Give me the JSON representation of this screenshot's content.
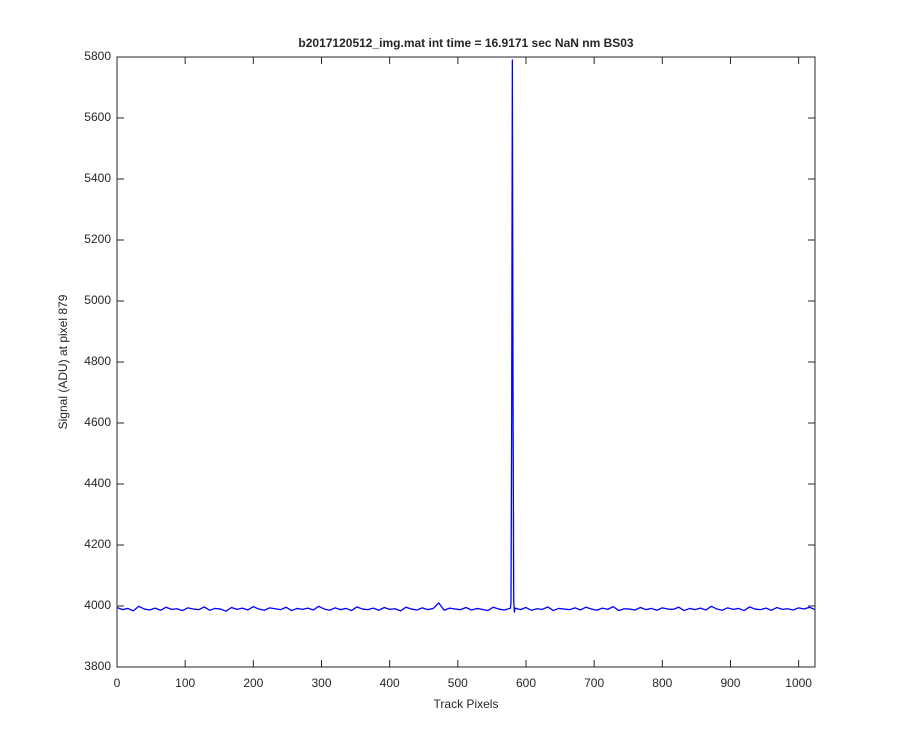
{
  "chart_data": {
    "type": "line",
    "title": "b2017120512_img.mat int time = 16.9171 sec  NaN nm BS03",
    "xlabel": "Track Pixels",
    "ylabel": "Signal (ADU) at pixel 879",
    "color": "#0000ff",
    "x": [
      0,
      8,
      16,
      24,
      32,
      40,
      48,
      56,
      64,
      72,
      80,
      88,
      96,
      104,
      112,
      120,
      128,
      136,
      144,
      152,
      160,
      168,
      176,
      184,
      192,
      200,
      208,
      216,
      224,
      232,
      240,
      248,
      256,
      264,
      272,
      280,
      288,
      296,
      304,
      312,
      320,
      328,
      336,
      344,
      352,
      360,
      368,
      376,
      384,
      392,
      400,
      408,
      416,
      424,
      432,
      440,
      448,
      456,
      464,
      472,
      480,
      488,
      496,
      504,
      512,
      520,
      528,
      536,
      544,
      552,
      560,
      568,
      576,
      577,
      578,
      579,
      580,
      581,
      582,
      583,
      584,
      592,
      600,
      608,
      616,
      624,
      632,
      640,
      648,
      656,
      664,
      672,
      680,
      688,
      696,
      704,
      712,
      720,
      728,
      736,
      744,
      752,
      760,
      768,
      776,
      784,
      792,
      800,
      808,
      816,
      824,
      832,
      840,
      848,
      856,
      864,
      872,
      880,
      888,
      896,
      904,
      912,
      920,
      928,
      936,
      944,
      952,
      960,
      968,
      976,
      984,
      992,
      1000,
      1008,
      1016,
      1024
    ],
    "values": [
      3995,
      3988,
      3992,
      3984,
      3999,
      3990,
      3987,
      3993,
      3986,
      3996,
      3989,
      3991,
      3985,
      3994,
      3990,
      3988,
      3997,
      3986,
      3992,
      3990,
      3983,
      3995,
      3989,
      3993,
      3987,
      3998,
      3990,
      3986,
      3994,
      3991,
      3988,
      3996,
      3985,
      3992,
      3989,
      3993,
      3987,
      3999,
      3990,
      3986,
      3994,
      3988,
      3992,
      3985,
      3997,
      3990,
      3988,
      3993,
      3986,
      3995,
      3989,
      3991,
      3984,
      3996,
      3990,
      3987,
      3994,
      3988,
      3992,
      4010,
      3986,
      3993,
      3990,
      3988,
      3995,
      3987,
      3992,
      3989,
      3985,
      3996,
      3990,
      3987,
      3992,
      3992,
      4010,
      4600,
      5790,
      4700,
      4020,
      3980,
      3993,
      3988,
      3995,
      3986,
      3991,
      3989,
      3997,
      3985,
      3992,
      3990,
      3988,
      3994,
      3987,
      3996,
      3990,
      3986,
      3993,
      3989,
      3998,
      3985,
      3991,
      3990,
      3987,
      3995,
      3988,
      3992,
      3986,
      3994,
      3990,
      3989,
      3996,
      3985,
      3992,
      3988,
      3993,
      3987,
      3999,
      3990,
      3986,
      3994,
      3989,
      3992,
      3985,
      3997,
      3990,
      3988,
      3993,
      3986,
      3995,
      3989,
      3991,
      3987,
      3994,
      3990,
      3996,
      3988
    ],
    "xlim": [
      0,
      1024
    ],
    "ylim": [
      3800,
      5800
    ],
    "xticks": [
      0,
      100,
      200,
      300,
      400,
      500,
      600,
      700,
      800,
      900,
      1000
    ],
    "yticks": [
      3800,
      4000,
      4200,
      4400,
      4600,
      4800,
      5000,
      5200,
      5400,
      5600,
      5800
    ]
  }
}
